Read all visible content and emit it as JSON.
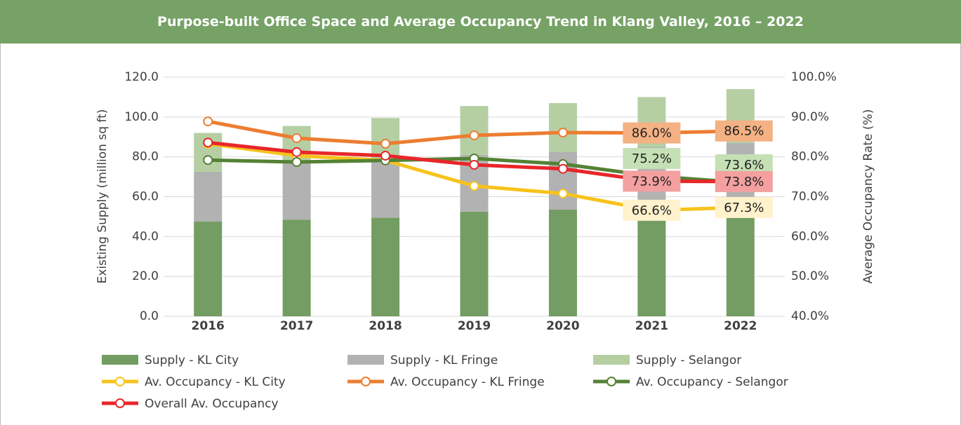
{
  "chart_data": {
    "type": "combo",
    "title": "Purpose-built Office Space and Average Occupancy Trend in Klang Valley, 2016 – 2022",
    "categories": [
      "2016",
      "2017",
      "2018",
      "2019",
      "2020",
      "2021",
      "2022"
    ],
    "ylabel": "Existing Supply (million sq ft)",
    "y2label": "Average Occupancy Rate (%)",
    "ylim": [
      0,
      120
    ],
    "yticks": [
      {
        "value": 0,
        "label": "0.0"
      },
      {
        "value": 20,
        "label": "20.0"
      },
      {
        "value": 40,
        "label": "40.0"
      },
      {
        "value": 60,
        "label": "60.0"
      },
      {
        "value": 80,
        "label": "80.0"
      },
      {
        "value": 100,
        "label": "100.0"
      },
      {
        "value": 120,
        "label": "120.0"
      }
    ],
    "y2lim": [
      40,
      100
    ],
    "y2ticks": [
      {
        "value": 40,
        "label": "40.0%"
      },
      {
        "value": 50,
        "label": "50.0%"
      },
      {
        "value": 60,
        "label": "60.0%"
      },
      {
        "value": 70,
        "label": "70.0%"
      },
      {
        "value": 80,
        "label": "80.0%"
      },
      {
        "value": 90,
        "label": "90.0%"
      },
      {
        "value": 100,
        "label": "100.0%"
      }
    ],
    "grid": true,
    "legend": "bottom",
    "series": [
      {
        "name": "Supply - KL City",
        "type": "bar",
        "stacked": true,
        "color": "#739d62",
        "values": [
          47.5,
          48.5,
          49.5,
          52.5,
          53.5,
          55,
          56
        ]
      },
      {
        "name": "Supply - KL Fringe",
        "type": "bar",
        "stacked": true,
        "color": "#b2b2b2",
        "values": [
          25,
          29,
          29.5,
          28.5,
          29,
          30,
          31
        ]
      },
      {
        "name": "Supply - Selangor",
        "type": "bar",
        "stacked": true,
        "color": "#b5cfa3",
        "values": [
          19.5,
          18,
          20.5,
          24.5,
          24.5,
          25,
          27
        ]
      },
      {
        "name": "Av. Occupancy - KL City",
        "type": "line",
        "axis": "y2",
        "color": "#f7c31b",
        "label_color": "#fff2cc",
        "values": [
          83.3,
          80.3,
          79.1,
          72.7,
          70.8,
          66.6,
          67.3
        ],
        "value_labels": [
          null,
          null,
          null,
          null,
          null,
          "66.6%",
          "67.3%"
        ]
      },
      {
        "name": "Av. Occupancy - KL Fringe",
        "type": "line",
        "axis": "y2",
        "color": "#ed7d31",
        "label_color": "#f4b183",
        "values": [
          88.9,
          84.7,
          83.3,
          85.4,
          86.1,
          86,
          86.5
        ],
        "value_labels": [
          null,
          null,
          null,
          null,
          null,
          "86.0%",
          "86.5%"
        ]
      },
      {
        "name": "Av. Occupancy - Selangor",
        "type": "line",
        "axis": "y2",
        "color": "#548235",
        "label_color": "#c5e0b4",
        "values": [
          79.2,
          78.7,
          79.1,
          79.6,
          78.2,
          75.2,
          73.6
        ],
        "value_labels": [
          null,
          null,
          null,
          null,
          null,
          "75.2%",
          "73.6%"
        ]
      },
      {
        "name": "Overall Av. Occupancy",
        "type": "line",
        "axis": "y2",
        "color": "#e8262a",
        "label_color": "#f4a0a0",
        "values": [
          83.6,
          81.2,
          80.3,
          78,
          77,
          73.9,
          73.8
        ],
        "value_labels": [
          null,
          null,
          null,
          null,
          null,
          "73.9%",
          "73.8%"
        ]
      }
    ]
  }
}
